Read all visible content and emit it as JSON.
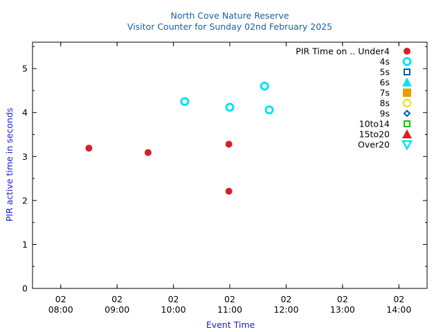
{
  "chart_data": {
    "type": "scatter",
    "title": "North Cove Nature Reserve",
    "subtitle": "Visitor Counter for Sunday 02nd February 2025",
    "xlabel": "Event Time",
    "ylabel": "PIR active time in seconds",
    "x_range": [
      "02 07:30",
      "02 14:30"
    ],
    "ylim": [
      0,
      5.6
    ],
    "x_ticks": [
      {
        "value": "02 08:00",
        "line1": "02",
        "line2": "08:00"
      },
      {
        "value": "02 09:00",
        "line1": "02",
        "line2": "09:00"
      },
      {
        "value": "02 10:00",
        "line1": "02",
        "line2": "10:00"
      },
      {
        "value": "02 11:00",
        "line1": "02",
        "line2": "11:00"
      },
      {
        "value": "02 12:00",
        "line1": "02",
        "line2": "12:00"
      },
      {
        "value": "02 13:00",
        "line1": "02",
        "line2": "13:00"
      },
      {
        "value": "02 14:00",
        "line1": "02",
        "line2": "14:00"
      }
    ],
    "y_ticks": [
      0,
      1,
      2,
      3,
      4,
      5
    ],
    "legend_title": "PIR Time on ..",
    "legend_position": "top-right",
    "grid": false,
    "series": [
      {
        "name": "Under4",
        "marker": "filled-circle",
        "color": "#d62028",
        "points": [
          {
            "x": "02 08:30",
            "y": 3.19
          },
          {
            "x": "02 09:33",
            "y": 3.09
          },
          {
            "x": "02 10:59",
            "y": 3.28
          },
          {
            "x": "02 10:59",
            "y": 2.21
          }
        ]
      },
      {
        "name": "4s",
        "marker": "open-circle",
        "color": "#00e5ee",
        "points": [
          {
            "x": "02 10:12",
            "y": 4.25
          },
          {
            "x": "02 11:00",
            "y": 4.12
          },
          {
            "x": "02 11:37",
            "y": 4.6
          },
          {
            "x": "02 11:42",
            "y": 4.06
          }
        ]
      },
      {
        "name": "5s",
        "marker": "open-square",
        "color": "#0060ad",
        "points": []
      },
      {
        "name": "6s",
        "marker": "filled-triangle",
        "color": "#00e5ee",
        "points": []
      },
      {
        "name": "7s",
        "marker": "filled-square",
        "color": "#e69f00",
        "points": []
      },
      {
        "name": "8s",
        "marker": "open-circle",
        "color": "#f0e442",
        "points": []
      },
      {
        "name": "9s",
        "marker": "open-diamond",
        "color": "#0060ad",
        "points": []
      },
      {
        "name": "10to14",
        "marker": "open-square",
        "color": "#00cc00",
        "points": []
      },
      {
        "name": "15to20",
        "marker": "filled-triangle",
        "color": "#e51e10",
        "points": []
      },
      {
        "name": "Over20",
        "marker": "open-inverted-triangle",
        "color": "#00e5ee",
        "points": []
      }
    ],
    "colors": {
      "title": "#1a5fa0",
      "axis_label": "#1a1ad8",
      "axis": "#000000"
    }
  }
}
